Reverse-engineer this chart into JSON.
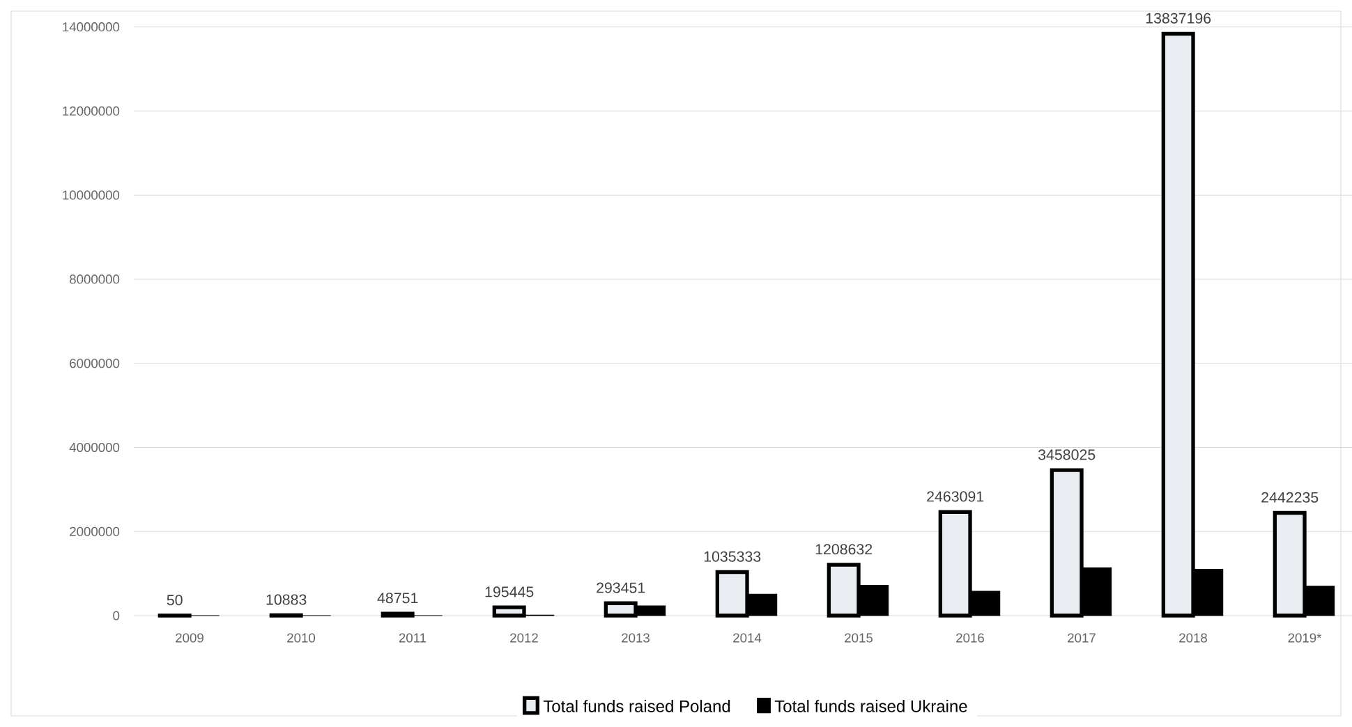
{
  "chart_data": {
    "type": "bar",
    "categories": [
      "2009",
      "2010",
      "2011",
      "2012",
      "2013",
      "2014",
      "2015",
      "2016",
      "2017",
      "2018",
      "2019*"
    ],
    "series": [
      {
        "name": "Total funds raised Poland",
        "color": "#e9edf2",
        "values": [
          50,
          10883,
          48751,
          195445,
          293451,
          1035333,
          1208632,
          2463091,
          3458025,
          13837196,
          2442235
        ],
        "value_labels": [
          "50",
          "10883",
          "48751",
          "195445",
          "293451",
          "1035333",
          "1208632",
          "2463091",
          "3458025",
          "13837196",
          "2442235"
        ]
      },
      {
        "name": "Total funds raised Ukraine",
        "color": "#000000",
        "values": [
          0,
          0,
          0,
          10000,
          230000,
          510000,
          720000,
          580000,
          1140000,
          1100000,
          700000
        ]
      }
    ],
    "ylim": [
      0,
      14000000
    ],
    "yticks": [
      0,
      2000000,
      4000000,
      6000000,
      8000000,
      10000000,
      12000000,
      14000000
    ],
    "grid": "y",
    "legend": "bottom"
  }
}
